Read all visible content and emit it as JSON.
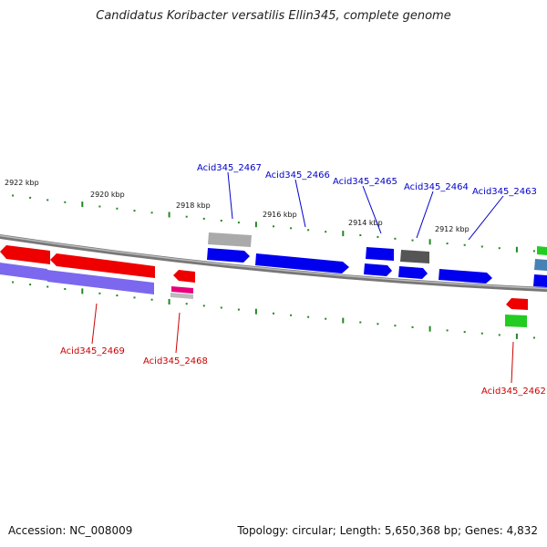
{
  "title": "Candidatus Koribacter versatilis Ellin345, complete genome",
  "footer": {
    "accession": "Accession: NC_008009",
    "summary": "Topology: circular; Length: 5,650,368 bp; Genes: 4,832"
  },
  "scale_labels": [
    "2922 kbp",
    "2920 kbp",
    "2918 kbp",
    "2916 kbp",
    "2914 kbp",
    "2912 kbp"
  ],
  "gene_labels": {
    "top": [
      "Acid345_2467",
      "Acid345_2466",
      "Acid345_2465",
      "Acid345_2464",
      "Acid345_2463"
    ],
    "bottom": [
      "Acid345_2469",
      "Acid345_2468",
      "Acid345_2462"
    ]
  },
  "colors": {
    "forward_cds": "#0000ee",
    "reverse_cds": "#ee0000",
    "reverse_gene": "#7b68ee",
    "rrna_like": "#aaaaaa",
    "other": "#555555",
    "trna": "#e8007c",
    "green": "#22cc22",
    "ticks": "#228822",
    "backbone": "#777777",
    "label_top": "#0000cc",
    "label_bottom": "#cc0000"
  }
}
